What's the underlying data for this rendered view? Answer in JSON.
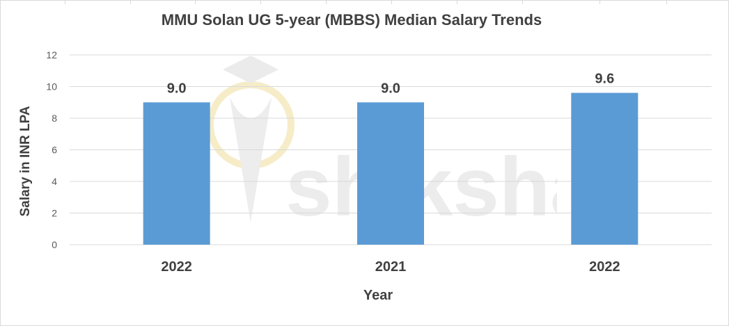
{
  "chart_data": {
    "type": "bar",
    "title": "MMU Solan UG 5-year (MBBS) Median Salary Trends",
    "xlabel": "Year",
    "ylabel": "Salary in INR LPA",
    "categories": [
      "2022",
      "2021",
      "2022"
    ],
    "values": [
      9.0,
      9.0,
      9.6
    ],
    "data_labels": [
      "9.0",
      "9.0",
      "9.6"
    ],
    "yticks": [
      0,
      2,
      4,
      6,
      8,
      10,
      12
    ],
    "ylim": [
      0,
      12
    ],
    "grid": true,
    "bar_color": "#5b9bd5",
    "grid_color": "#d9d9d9"
  },
  "watermark": {
    "text": "shiksha",
    "color": "#e8e8e8",
    "accent": "#f7e9b8"
  }
}
